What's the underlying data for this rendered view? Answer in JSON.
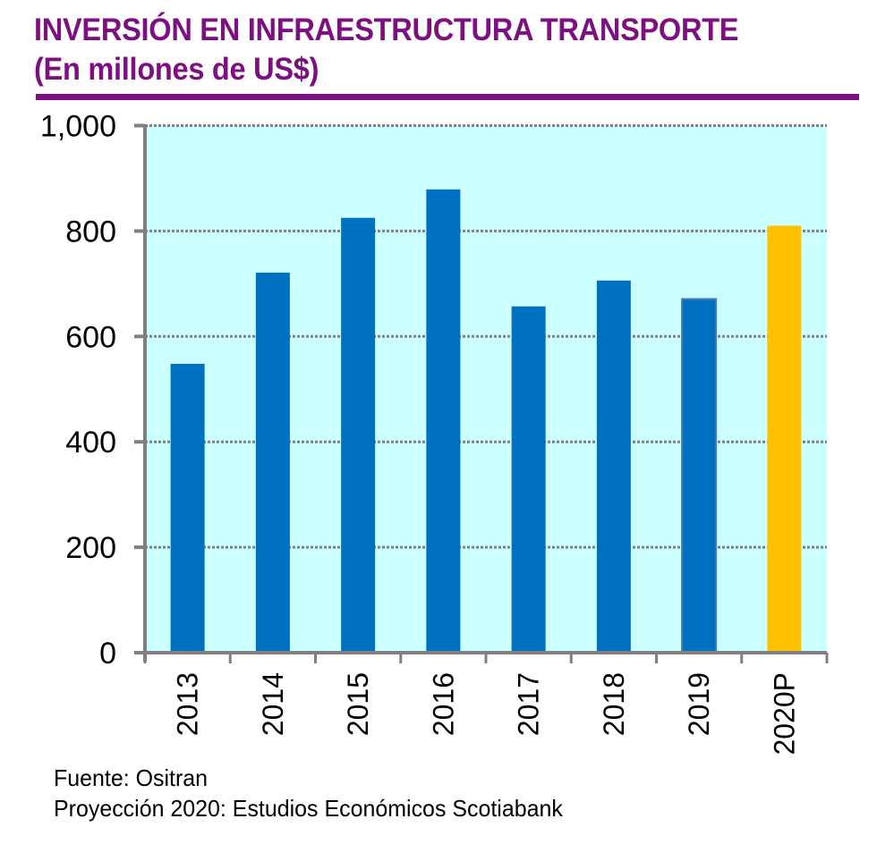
{
  "header": {
    "title_line1": "INVERSIÓN EN INFRAESTRUCTURA TRANSPORTE",
    "title_line2": "(En millones de US$)"
  },
  "footer": {
    "source": "Fuente: Ositran",
    "projection_note": "Proyección 2020: Estudios Económicos Scotiabank"
  },
  "colors": {
    "title": "#7d0f80",
    "bar_actual": "#0070c0",
    "bar_projection": "#ffc000",
    "plot_background": "#ccffff",
    "grid": "#808080",
    "axis": "#808080"
  },
  "chart_data": {
    "type": "bar",
    "title": "INVERSIÓN EN INFRAESTRUCTURA TRANSPORTE (En millones de US$)",
    "xlabel": "",
    "ylabel": "",
    "categories": [
      "2013",
      "2014",
      "2015",
      "2016",
      "2017",
      "2018",
      "2019",
      "2020P"
    ],
    "values": [
      548,
      721,
      825,
      879,
      657,
      706,
      671,
      810
    ],
    "bar_types": [
      "actual",
      "actual",
      "actual",
      "actual",
      "actual",
      "actual",
      "actual",
      "projection"
    ],
    "ylim": [
      0,
      1000
    ],
    "yticks": [
      0,
      200,
      400,
      600,
      800,
      1000
    ],
    "ytick_labels": [
      "0",
      "200",
      "400",
      "600",
      "800",
      "1,000"
    ],
    "grid": true,
    "grid_style": "dotted",
    "legend": "none"
  }
}
